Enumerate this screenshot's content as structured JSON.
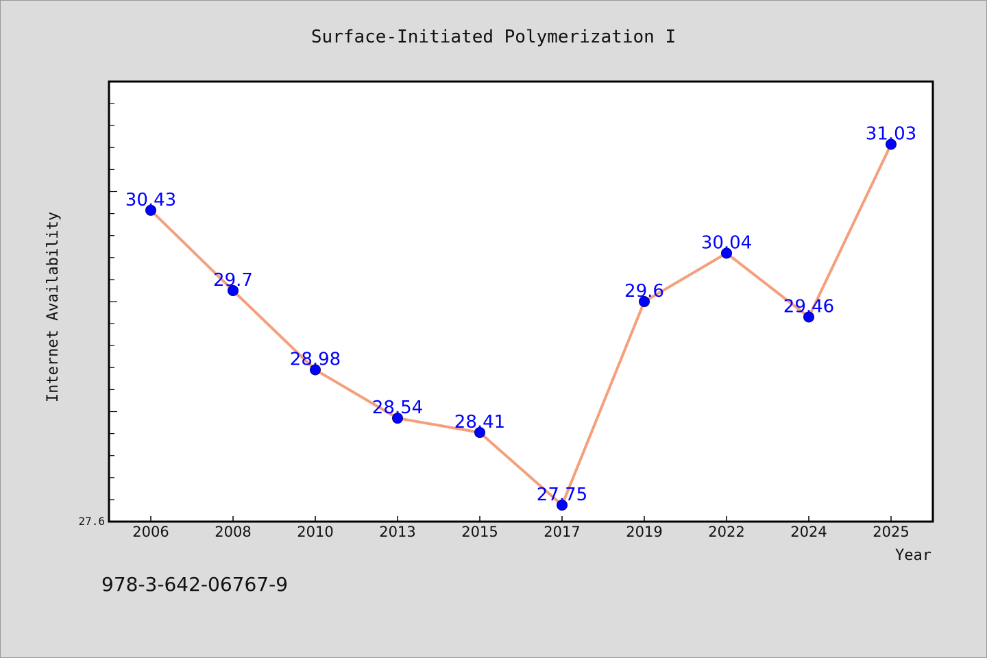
{
  "chart_data": {
    "type": "line",
    "title": "Surface-Initiated Polymerization I",
    "xlabel": "Year",
    "ylabel": "Internet Availability",
    "categories": [
      "2006",
      "2008",
      "2010",
      "2013",
      "2015",
      "2017",
      "2019",
      "2022",
      "2024",
      "2025"
    ],
    "values": [
      30.43,
      29.7,
      28.98,
      28.54,
      28.41,
      27.75,
      29.6,
      30.04,
      29.46,
      31.03
    ],
    "data_labels": [
      "30.43",
      "29.7",
      "28.98",
      "28.54",
      "28.41",
      "27.75",
      "29.6",
      "30.04",
      "29.46",
      "31.03"
    ],
    "y_min_label": "27.6",
    "ylim": [
      27.6,
      31.6
    ],
    "grid": false,
    "line_color": "#f4a07c",
    "marker_color": "#0000ff",
    "label_color": "#0000ff"
  },
  "footer": {
    "isbn": "978-3-642-06767-9"
  }
}
